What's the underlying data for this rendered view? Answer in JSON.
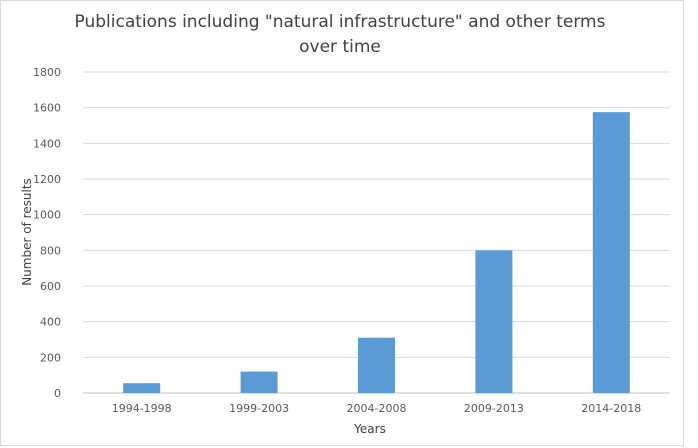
{
  "chart_data": {
    "type": "bar",
    "title": "Publications including \"natural infrastructure\" and other terms over time",
    "xlabel": "Years",
    "ylabel": "Number  of results",
    "categories": [
      "1994-1998",
      "1999-2003",
      "2004-2008",
      "2009-2013",
      "2014-2018"
    ],
    "values": [
      55,
      120,
      310,
      800,
      1575
    ],
    "ylim": [
      0,
      1800
    ],
    "yticks": [
      0,
      200,
      400,
      600,
      800,
      1000,
      1200,
      1400,
      1600,
      1800
    ],
    "grid": true,
    "legend": "none",
    "bar_color": "#5b9bd5"
  }
}
